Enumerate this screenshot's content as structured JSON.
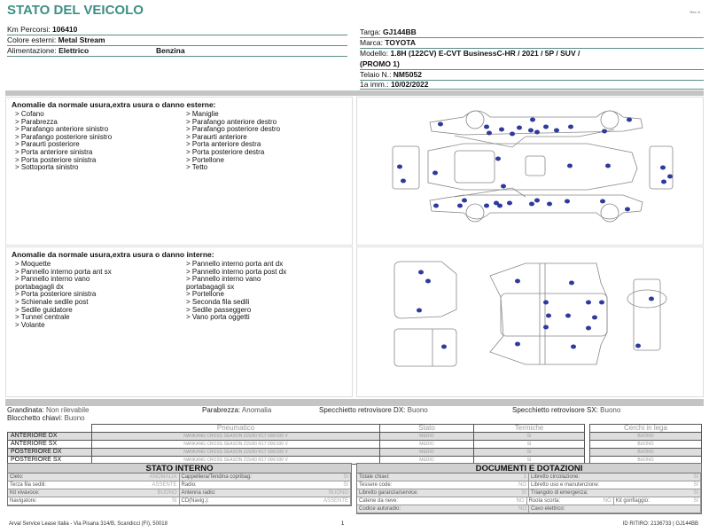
{
  "title": "STATO DEL VEICOLO",
  "rev": "Rev. A",
  "info_left": [
    {
      "label": "Km Percorsi: ",
      "value": "106410"
    },
    {
      "label": "Colore esterni: ",
      "value": "Metal Stream"
    },
    {
      "label": "Alimentazione: ",
      "value": "Elettrico",
      "value2": "Benzina"
    }
  ],
  "info_right": {
    "targa": {
      "label": "Targa: ",
      "value": "GJ144BB"
    },
    "marca": {
      "label": "Marca: ",
      "value": "TOYOTA"
    },
    "modello": {
      "label": "Modello: ",
      "value": "1.8H (122CV) E-CVT BusinessC-HR / 2021 / 5P / SUV /",
      "value2": "(PROMO 1)"
    },
    "telaio": {
      "label": "Telaio N.: ",
      "value": "NM5052"
    },
    "imm": {
      "label": "1a imm.: ",
      "value": "10/02/2022"
    }
  },
  "exterior": {
    "title": "Anomalie da normale usura,extra usura o danno esterne:",
    "col1": [
      "> Cofano",
      "> Parabrezza",
      "> Parafango anteriore sinistro",
      "> Parafango posteriore sinistro",
      "> Paraurti posteriore",
      "> Porta anteriore sinistra",
      "> Porta posteriore sinistra",
      "> Sottoporta sinistro"
    ],
    "col2": [
      "> Maniglie",
      "> Parafango anteriore destro",
      "> Parafango posteriore destro",
      "> Paraurti anteriore",
      "> Porta anteriore destra",
      "> Porta posteriore destra",
      "> Portellone",
      "> Tetto"
    ]
  },
  "interior": {
    "title": "Anomalie da normale usura,extra usura o danno interne:",
    "col1": [
      "> Moquette",
      "> Pannello interno porta ant sx",
      "> Pannello interno vano",
      "portabagagli dx",
      "> Porta posteriore sinistra",
      "> Schienale sedile post",
      "> Sedile guidatore",
      "> Tunnel centrale",
      "> Volante"
    ],
    "col2": [
      "> Pannello interno porta ant dx",
      "> Pannello interno porta post dx",
      "> Pannello interno vano",
      "portabagagli sx",
      "> Portellone",
      "> Seconda fila sedili",
      "> Sedile passeggero",
      "> Vano porta oggetti"
    ]
  },
  "conditions": {
    "grandinata": {
      "label": "Grandinata: ",
      "value": "Non rilevabile"
    },
    "blocchetto": {
      "label": "Blocchetto chiavi: ",
      "value": "Buono"
    },
    "parabrezza": {
      "label": "Parabrezza: ",
      "value": "Anomalia"
    },
    "spec_dx": {
      "label": "Specchietto retrovisore DX: ",
      "value": "Buono"
    },
    "spec_sx": {
      "label": "Specchietto retrovisore SX: ",
      "value": "Buono"
    }
  },
  "tires": {
    "headers": [
      "Pneumatico",
      "Stato",
      "Termiche"
    ],
    "rim_header": "Cerchi in lega",
    "rows": [
      {
        "pos": "ANTERIORE DX",
        "tire": "NANKANG CROSS SEASON  215/60 R17 000/100 V",
        "stato": "MEDIO",
        "term": "SI",
        "rim": "BUONO"
      },
      {
        "pos": "ANTERIORE SX",
        "tire": "NANKANG CROSS SEASON  215/60 R17 000/100 V",
        "stato": "MEDIO",
        "term": "SI",
        "rim": "BUONO"
      },
      {
        "pos": "POSTERIORE DX",
        "tire": "NANKANG CROSS SEASON  215/60 R17 000/100 V",
        "stato": "MEDIO",
        "term": "SI",
        "rim": "BUONO"
      },
      {
        "pos": "POSTERIORE SX",
        "tire": "NANKANG CROSS SEASON  215/60 R17 000/100 V",
        "stato": "MEDIO",
        "term": "SI",
        "rim": "BUONO"
      }
    ]
  },
  "stato_interno": {
    "title": "STATO INTERNO",
    "rows": [
      [
        {
          "l": "Cielo:",
          "v": "ANOMALIA"
        },
        {
          "l": "Cappelliera/Tendina copribag:",
          "v": "SI"
        }
      ],
      [
        {
          "l": "Terza fila sedili:",
          "v": "ASSENTE"
        },
        {
          "l": "Radio:",
          "v": "SI"
        }
      ],
      [
        {
          "l": "Kit vivavoce:",
          "v": "BUONO"
        },
        {
          "l": "Antenna radio:",
          "v": "BUONO"
        }
      ],
      [
        {
          "l": "Navigatore:",
          "v": "SI"
        },
        {
          "l": "CD(Navig.):",
          "v": "ASSENTE"
        }
      ]
    ]
  },
  "documenti": {
    "title": "DOCUMENTI E DOTAZIONI",
    "rows": [
      [
        {
          "l": "Totale chiavi:",
          "v": "1"
        },
        {
          "l": "Libretto circolazione:",
          "v": "SI"
        }
      ],
      [
        {
          "l": "Tessere code:",
          "v": "NO"
        },
        {
          "l": "Libretto uso e manutenzione:",
          "v": "SI"
        }
      ],
      [
        {
          "l": "Libretto garanzia/service:",
          "v": "SI"
        },
        {
          "l": "Triangolo di emergenza:",
          "v": "SI"
        }
      ],
      [
        {
          "l": "Catene da neve:",
          "v": "NO"
        },
        {
          "l": "Ruota scorta:",
          "v": "NO"
        },
        {
          "l": "Kit gonfiaggio:",
          "v": "SI"
        }
      ],
      [
        {
          "l": "Codice autoradio:",
          "v": "NO"
        },
        {
          "l": "Cavo elettrico:",
          "v": ""
        }
      ]
    ]
  },
  "footer": {
    "address": "Arval Service Lease Italia - Via Pisana 314/B, Scandicci (FI), 50018",
    "page": "1",
    "id": "ID RITIRO: 2136733 | GJ144BB"
  },
  "colors": {
    "title": "#3d8f84",
    "dot": "#2e3a9c"
  }
}
